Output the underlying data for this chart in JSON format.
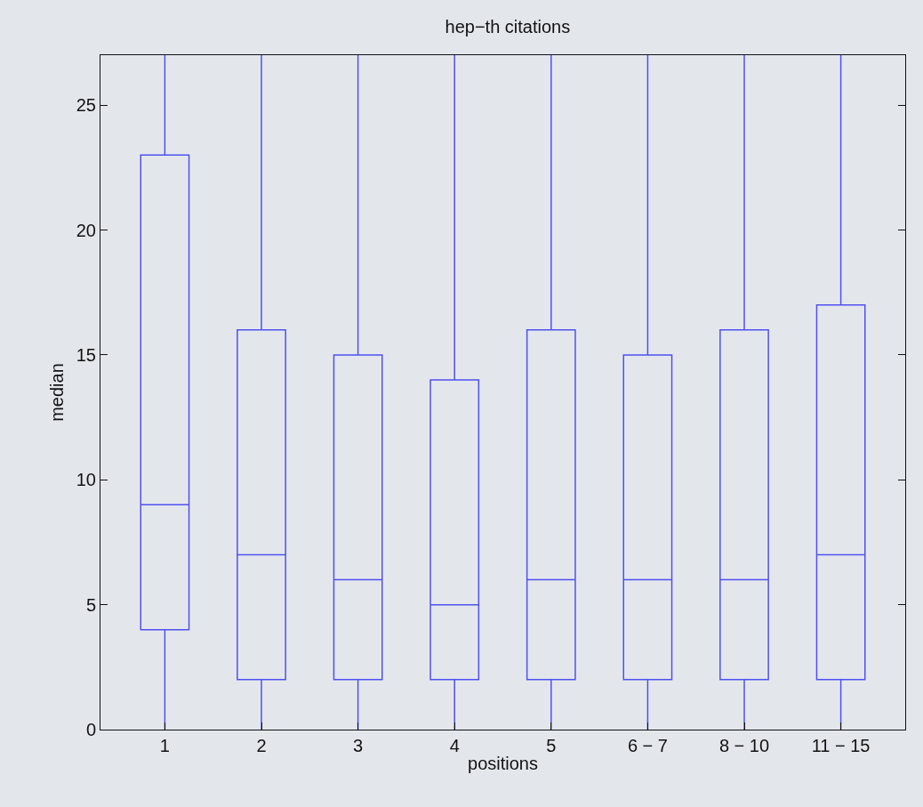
{
  "chart_data": {
    "type": "box",
    "title": "hep−th citations",
    "xlabel": "positions",
    "ylabel": "median",
    "categories": [
      "1",
      "2",
      "3",
      "4",
      "5",
      "6 − 7",
      "8 − 10",
      "11 − 15"
    ],
    "ylim": [
      0,
      27
    ],
    "yticks": [
      0,
      5,
      10,
      15,
      20,
      25
    ],
    "grid": false,
    "color": "#5050f0",
    "boxes": [
      {
        "low": 0,
        "q1": 4,
        "median": 9,
        "q3": 23,
        "high": 27
      },
      {
        "low": 0,
        "q1": 2,
        "median": 7,
        "q3": 16,
        "high": 27
      },
      {
        "low": 0,
        "q1": 2,
        "median": 6,
        "q3": 15,
        "high": 27
      },
      {
        "low": 0,
        "q1": 2,
        "median": 5,
        "q3": 14,
        "high": 27
      },
      {
        "low": 0,
        "q1": 2,
        "median": 6,
        "q3": 16,
        "high": 27
      },
      {
        "low": 0,
        "q1": 2,
        "median": 6,
        "q3": 15,
        "high": 27
      },
      {
        "low": 0,
        "q1": 2,
        "median": 6,
        "q3": 16,
        "high": 27
      },
      {
        "low": 0,
        "q1": 2,
        "median": 7,
        "q3": 17,
        "high": 27
      }
    ]
  }
}
